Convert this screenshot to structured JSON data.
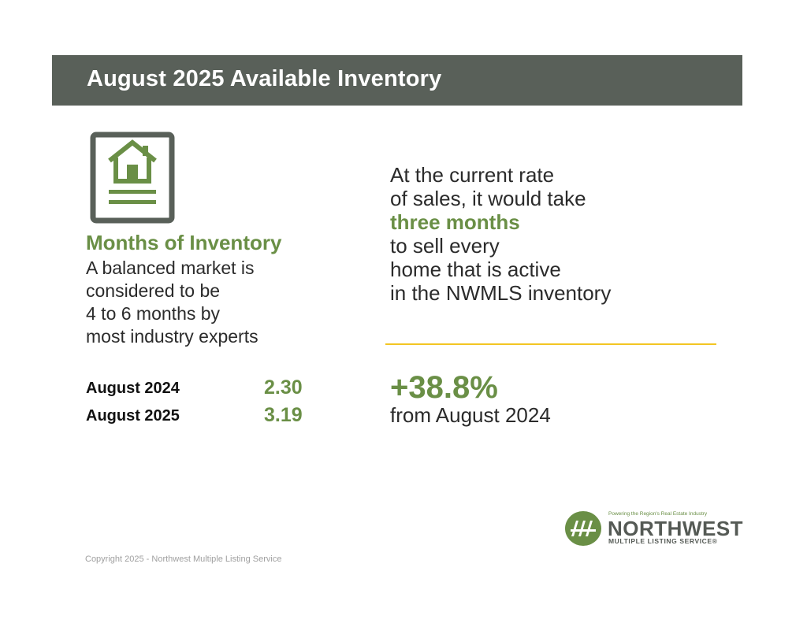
{
  "header": {
    "title": "August 2025 Available Inventory"
  },
  "colors": {
    "header_bg": "#596059",
    "accent_green": "#6a8f46",
    "divider_yellow": "#f3c623",
    "icon_dark": "#596059"
  },
  "icon": {
    "name": "house-document-icon"
  },
  "months_of_inventory": {
    "title": "Months of Inventory",
    "description_lines": [
      "A balanced market is",
      "considered to be",
      "4 to 6 months by",
      "most industry experts"
    ]
  },
  "stats": [
    {
      "label": "August 2024",
      "value": "2.30"
    },
    {
      "label": "August 2025",
      "value": "3.19"
    }
  ],
  "rate_text": {
    "line1": "At the current rate",
    "line2": "of sales, it would take",
    "highlight": "three months",
    "line4": "to sell every",
    "line5": "home that is active",
    "line6": "in the NWMLS inventory"
  },
  "change": {
    "value": "+38.8%",
    "caption": "from August 2024"
  },
  "logo": {
    "tagline": "Powering the Region's Real Estate Industry",
    "name": "NORTHWEST",
    "subtitle": "MULTIPLE LISTING SERVICE®"
  },
  "footer": {
    "copyright": "Copyright 2025 - Northwest Multiple Listing Service"
  }
}
